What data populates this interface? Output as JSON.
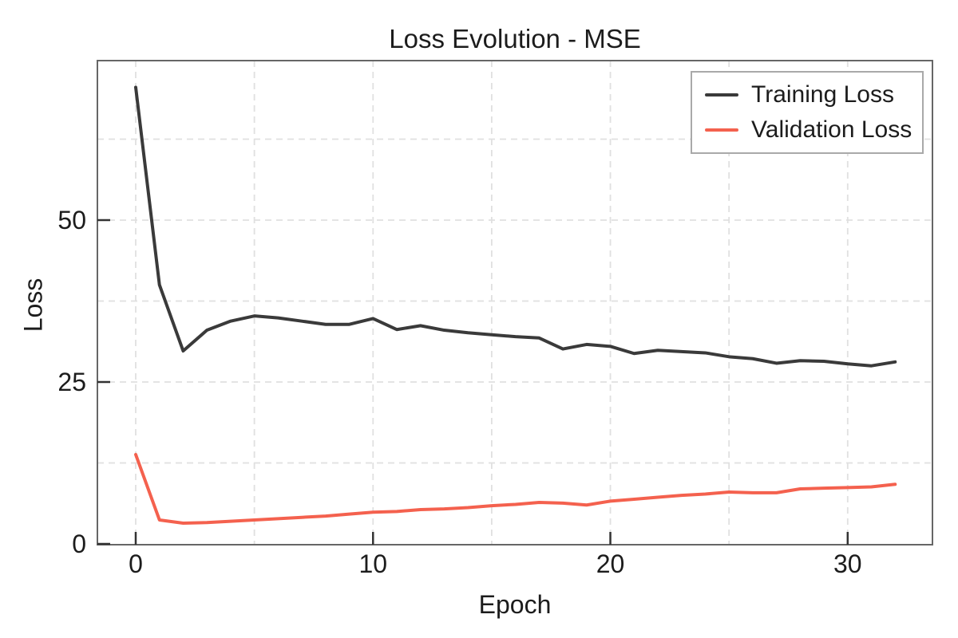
{
  "chart_data": {
    "type": "line",
    "title": "Loss Evolution - MSE",
    "xlabel": "Epoch",
    "ylabel": "Loss",
    "xlim": [
      -1.6,
      33.6
    ],
    "ylim": [
      0,
      74.6
    ],
    "grid": {
      "visible": true,
      "style": "dashed",
      "color": "#e0e0e0",
      "x_lines": [
        0,
        5,
        10,
        15,
        20,
        25,
        30
      ],
      "y_lines": [
        12.5,
        25,
        37.5,
        50,
        62.5
      ]
    },
    "axes": {
      "x_ticks": [
        0,
        10,
        20,
        30
      ],
      "y_ticks": [
        0,
        25,
        50
      ],
      "tick_direction": "in"
    },
    "legend": {
      "position": "upper-right",
      "border_color": "#a9a9a9"
    },
    "x": [
      0,
      1,
      2,
      3,
      4,
      5,
      6,
      7,
      8,
      9,
      10,
      11,
      12,
      13,
      14,
      15,
      16,
      17,
      18,
      19,
      20,
      21,
      22,
      23,
      24,
      25,
      26,
      27,
      28,
      29,
      30,
      31,
      32
    ],
    "series": [
      {
        "name": "Training Loss",
        "color": "#3a3a3a",
        "values": [
          70.5,
          40.0,
          29.8,
          33.0,
          34.4,
          35.2,
          34.9,
          34.4,
          33.9,
          33.9,
          34.8,
          33.1,
          33.7,
          33.0,
          32.6,
          32.3,
          32.0,
          31.8,
          30.1,
          30.8,
          30.5,
          29.4,
          29.9,
          29.7,
          29.5,
          28.9,
          28.6,
          27.9,
          28.3,
          28.2,
          27.8,
          27.5,
          28.1
        ]
      },
      {
        "name": "Validation Loss",
        "color": "#f4614e",
        "values": [
          13.8,
          3.7,
          3.2,
          3.3,
          3.5,
          3.7,
          3.9,
          4.1,
          4.3,
          4.6,
          4.9,
          5.0,
          5.3,
          5.4,
          5.6,
          5.9,
          6.1,
          6.4,
          6.3,
          6.0,
          6.6,
          6.9,
          7.2,
          7.5,
          7.7,
          8.0,
          7.9,
          7.9,
          8.5,
          8.6,
          8.7,
          8.8,
          9.2
        ]
      }
    ]
  }
}
